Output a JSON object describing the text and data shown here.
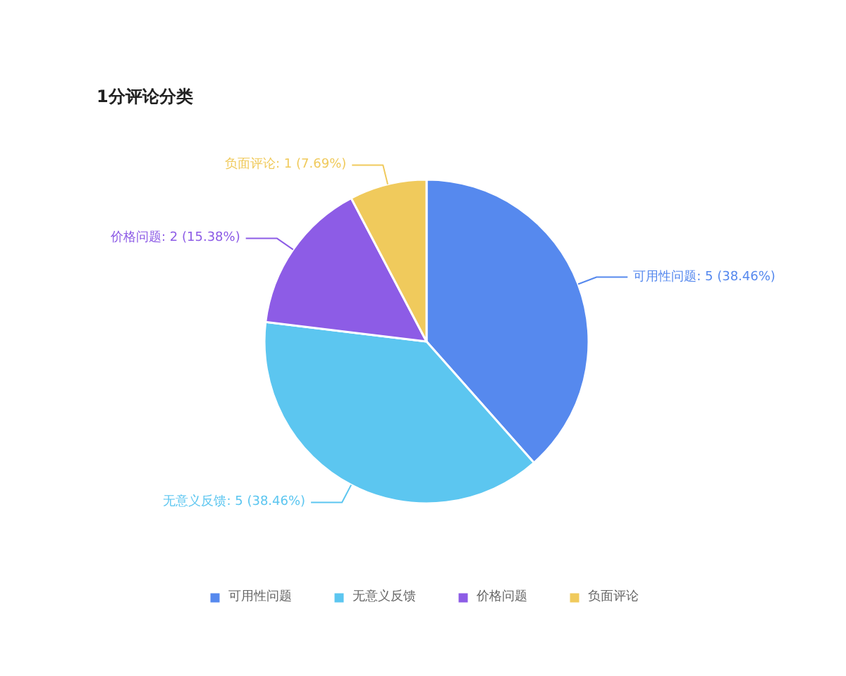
{
  "chart_data": {
    "type": "pie",
    "title": "1分评论分类",
    "categories": [
      "可用性问题",
      "无意义反馈",
      "价格问题",
      "负面评论"
    ],
    "values": [
      5,
      5,
      2,
      1
    ],
    "colors": [
      "#5689ee",
      "#5cc6f0",
      "#8d5ce6",
      "#f0ca5c"
    ],
    "value_labels": [
      "可用性问题: 5 (38.46%)",
      "无意义反馈: 5 (38.46%)",
      "价格问题: 2 (15.38%)",
      "负面评论: 1 (7.69%)"
    ],
    "legend": "bottom"
  }
}
